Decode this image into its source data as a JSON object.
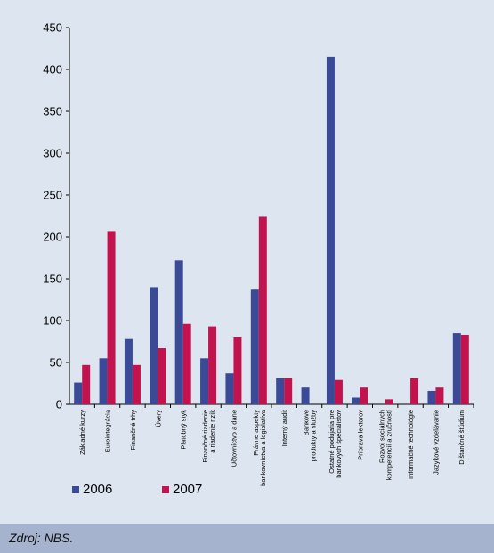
{
  "chart_data": {
    "type": "bar",
    "categories": [
      [
        "Základné kurzy"
      ],
      [
        "Eurointegrácia"
      ],
      [
        "Finančné trhy"
      ],
      [
        "Úvery"
      ],
      [
        "Platobný styk"
      ],
      [
        "Finančné riadenie",
        "a riadenie rizík"
      ],
      [
        "Účtovníctvo a dane"
      ],
      [
        "Právne aspekty",
        "bankovníctva a legislatíva"
      ],
      [
        "Interný audit"
      ],
      [
        "Bankové",
        "produkty a služby"
      ],
      [
        "Ostatné podujatia pre",
        "bankových špecialistov"
      ],
      [
        "Príprava lektorov"
      ],
      [
        "Rozvoj sociálnych",
        "kompetencií a zručností"
      ],
      [
        "Informačné technológie"
      ],
      [
        "Jazykové vzdelávanie"
      ],
      [
        "Dištančné štúdium"
      ]
    ],
    "series": [
      {
        "name": "2006",
        "color": "#3a4a96",
        "values": [
          26,
          55,
          78,
          140,
          172,
          55,
          37,
          137,
          31,
          20,
          415,
          8,
          0,
          0,
          16,
          85
        ]
      },
      {
        "name": "2007",
        "color": "#c2134f",
        "values": [
          47,
          207,
          47,
          67,
          96,
          93,
          80,
          224,
          31,
          0,
          29,
          20,
          6,
          31,
          20,
          83
        ]
      }
    ],
    "ylim": [
      0,
      450
    ],
    "yticks": [
      0,
      50,
      100,
      150,
      200,
      250,
      300,
      350,
      400,
      450
    ],
    "legend_position": "bottom-left",
    "grid": false
  },
  "source": "Zdroj: NBS."
}
